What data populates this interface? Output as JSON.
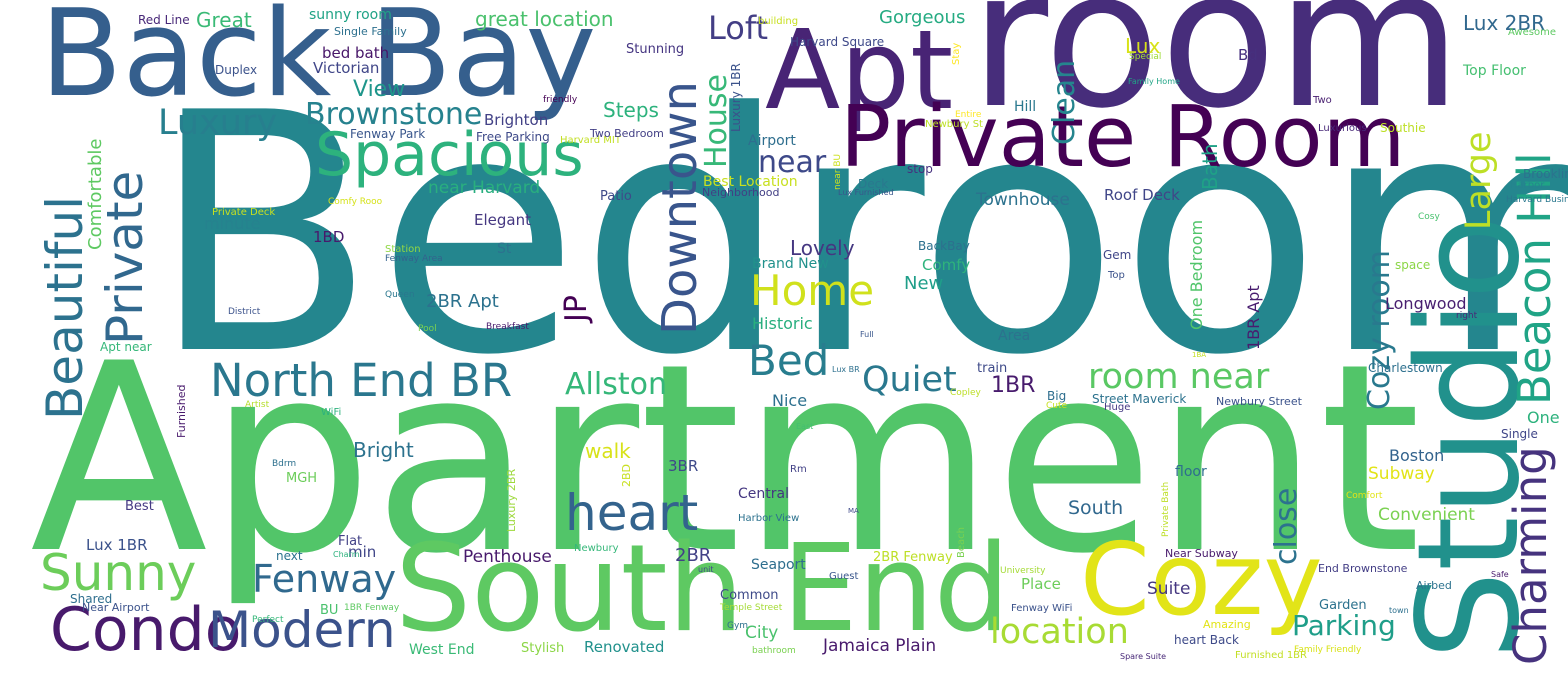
{
  "words": [
    {
      "text": "Bedroom",
      "color": "#24868e"
    },
    {
      "text": "Apartment",
      "color": "#52c569"
    },
    {
      "text": "room",
      "color": "#472d7b"
    },
    {
      "text": "Back Bay",
      "color": "#355f8d"
    },
    {
      "text": "Apt",
      "color": "#482475"
    },
    {
      "text": "Private Room",
      "color": "#440154"
    },
    {
      "text": "South End",
      "color": "#5ec962"
    },
    {
      "text": "Studio",
      "color": "#21918c"
    },
    {
      "text": "Cozy",
      "color": "#e2e418"
    },
    {
      "text": "Spacious",
      "color": "#2db27d"
    },
    {
      "text": "Beautiful",
      "color": "#2c728e"
    },
    {
      "text": "Private",
      "color": "#31688e"
    },
    {
      "text": "Condo",
      "color": "#481a6c"
    },
    {
      "text": "Modern",
      "color": "#3b528b"
    },
    {
      "text": "Sunny",
      "color": "#6ccd5a"
    },
    {
      "text": "heart",
      "color": "#33638d"
    },
    {
      "text": "Downtown",
      "color": "#39558c"
    },
    {
      "text": "North End BR",
      "color": "#2a778e"
    },
    {
      "text": "Charming",
      "color": "#46337e"
    },
    {
      "text": "Beacon Hill",
      "color": "#20a486"
    },
    {
      "text": "Home",
      "color": "#d0e11c"
    },
    {
      "text": "Bed",
      "color": "#287d8e"
    },
    {
      "text": "Fenway",
      "color": "#30698e"
    },
    {
      "text": "Luxury",
      "color": "#277f8e"
    },
    {
      "text": "location",
      "color": "#a8db34"
    },
    {
      "text": "room near",
      "color": "#5ac864"
    },
    {
      "text": "Large",
      "color": "#bddf26"
    },
    {
      "text": "Quiet",
      "color": "#2a788e"
    },
    {
      "text": "Allston",
      "color": "#35b779"
    },
    {
      "text": "Parking",
      "color": "#1f9e89"
    },
    {
      "text": "Brownstone",
      "color": "#26828e"
    },
    {
      "text": "Loft",
      "color": "#433e85"
    },
    {
      "text": "House",
      "color": "#37b878"
    },
    {
      "text": "near",
      "color": "#3e4989"
    },
    {
      "text": "Cozy room",
      "color": "#29798e"
    },
    {
      "text": "close",
      "color": "#2c728e"
    },
    {
      "text": "JP",
      "color": "#440154"
    },
    {
      "text": "Clean",
      "color": "#25858e"
    },
    {
      "text": "Back Bay",
      "color": "#2c728e"
    }
  ],
  "small_words": [
    "Great",
    "Red Line",
    "sunny room",
    "great location",
    "Gorgeous",
    "Lux 2BR",
    "Awesome",
    "building",
    "Stay",
    "Harvard Square",
    "Lux",
    "Bd",
    "Top Floor",
    "Single Family",
    "bed bath",
    "Duplex",
    "Victorian",
    "View",
    "Stunning",
    "Luxury 1BR",
    "Special",
    "Family Home",
    "Two",
    "friendly",
    "Steps",
    "Brighton",
    "Hill",
    "Entire",
    "Newbury St",
    "Fenway Park",
    "Free Parking",
    "Harvard MIT",
    "Two Bedroom",
    "Airport",
    "Luxurious",
    "Southie",
    "Comfortable",
    "near Harvard",
    "Best Location",
    "near BU",
    "Deck",
    "stop",
    "Brookline",
    "Harbor",
    "Harvard Business",
    "Comfy Rooo",
    "Private Deck",
    "Patio",
    "Neighborhood",
    "Lux Furnished",
    "Townhouse",
    "Roof Deck",
    "Cosy",
    "minute",
    "Elegant",
    "Bath",
    "1BD",
    "St",
    "Lovely",
    "Brand New",
    "Comfy",
    "BackBay",
    "Gem",
    "Top",
    "space",
    "Station",
    "Fenway Area",
    "New",
    "One Bedroom",
    "Queen",
    "District",
    "2BR Apt",
    "Historic",
    "Longwood",
    "Pool",
    "Breakfast",
    "Full",
    "1BR Apt",
    "right",
    "Apt near",
    "Area",
    "1BA",
    "Lux BR",
    "train",
    "Charlestown",
    "Furnished",
    "Artist",
    "1BR",
    "Big",
    "Nice",
    "Cute",
    "Street Maverick",
    "Huge",
    "Newbury Street",
    "WiFi",
    "East",
    "Copley",
    "One",
    "Single",
    "Bright",
    "walk",
    "Boston",
    "Bdrm",
    "Luxury 2BR",
    "3BR",
    "Rm",
    "floor",
    "2BD",
    "Private Bath",
    "Subway",
    "MGH",
    "Central",
    "Comfort",
    "Best",
    "MA",
    "South",
    "Convenient",
    "Harbor View",
    "Beach",
    "Lux 1BR",
    "Flat",
    "next",
    "min",
    "Charm",
    "Penthouse",
    "2BR",
    "Newbury",
    "2BR Fenway",
    "Near Subway",
    "unit",
    "Seaport",
    "Guest",
    "University",
    "End Brownstone",
    "Safe",
    "Suite",
    "Airbed",
    "Shared",
    "Near Airport",
    "BU",
    "1BR Fenway",
    "Common",
    "Temple Street",
    "Place",
    "Garden",
    "Perfect",
    "Gym",
    "City",
    "Fenway WiFi",
    "Amazing",
    "town",
    "heart Back",
    "Jamaica Plain",
    "West End",
    "Stylish",
    "Renovated",
    "bathroom",
    "Spare Suite",
    "Furnished 1BR",
    "Family Friendly"
  ]
}
